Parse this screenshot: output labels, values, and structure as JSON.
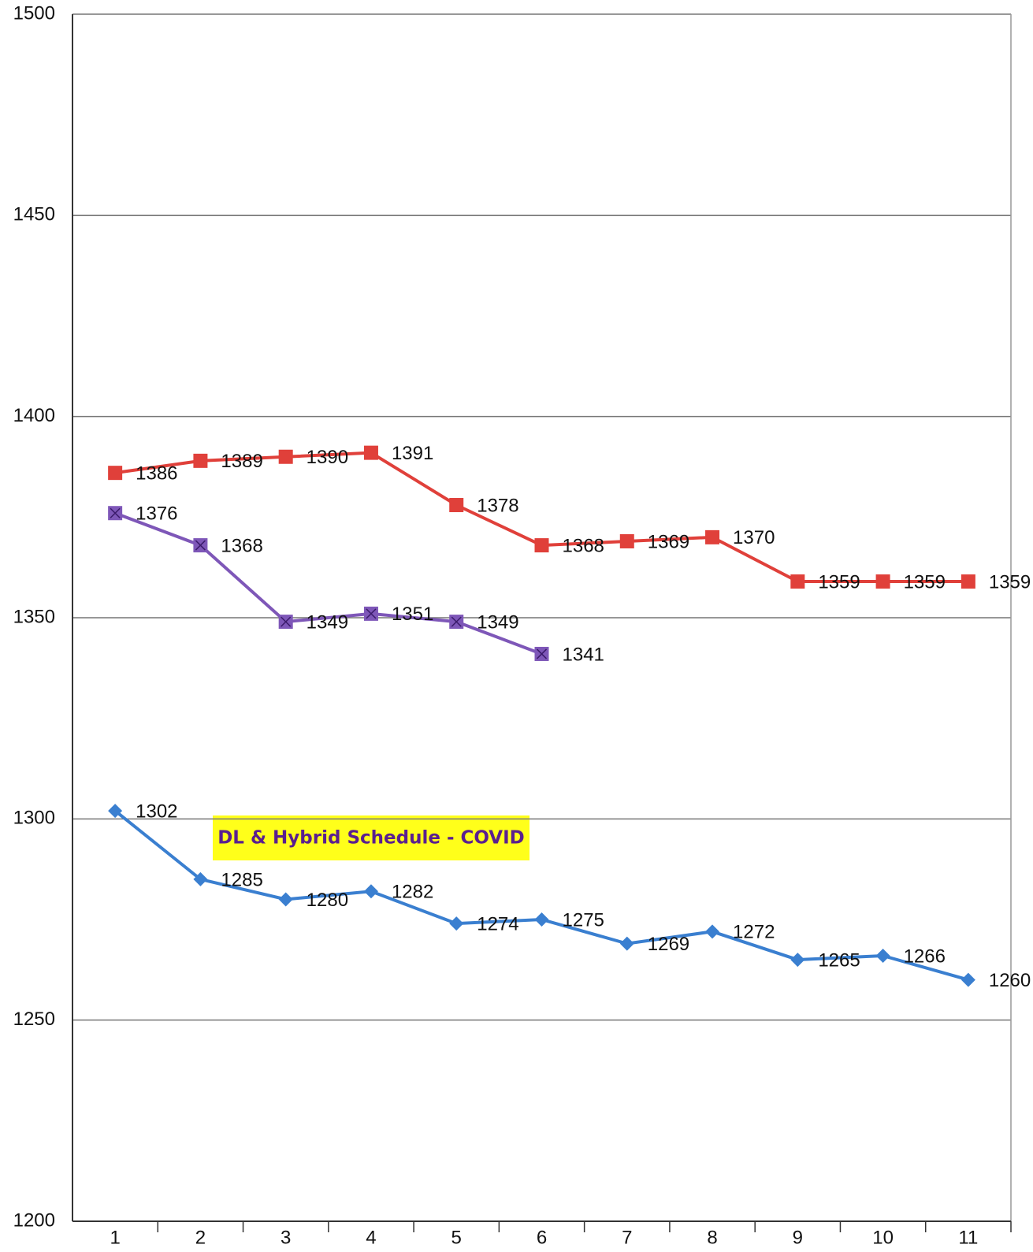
{
  "chart_data": {
    "type": "line",
    "categories": [
      "1",
      "2",
      "3",
      "4",
      "5",
      "6",
      "7",
      "8",
      "9",
      "10",
      "11"
    ],
    "series": [
      {
        "color": "#e0403a",
        "marker": "square",
        "label_color": "#111111",
        "values": [
          1386,
          1389,
          1390,
          1391,
          1378,
          1368,
          1369,
          1370,
          1359,
          1359,
          1359
        ]
      },
      {
        "color": "#7e57b8",
        "marker": "square-x",
        "label_color": "#5a2a8a",
        "values": [
          1376,
          1368,
          1349,
          1351,
          1349,
          1341,
          null,
          null,
          null,
          null,
          null
        ]
      },
      {
        "color": "#3a7fd0",
        "marker": "diamond",
        "label_color": "#111111",
        "values": [
          1302,
          1285,
          1280,
          1282,
          1274,
          1275,
          1269,
          1272,
          1265,
          1266,
          1260
        ]
      }
    ],
    "ylim": [
      1200,
      1500
    ],
    "yticks": [
      1200,
      1250,
      1300,
      1350,
      1400,
      1450,
      1500
    ],
    "grid": true,
    "annotation": "DL & Hybrid Schedule - COVID"
  }
}
